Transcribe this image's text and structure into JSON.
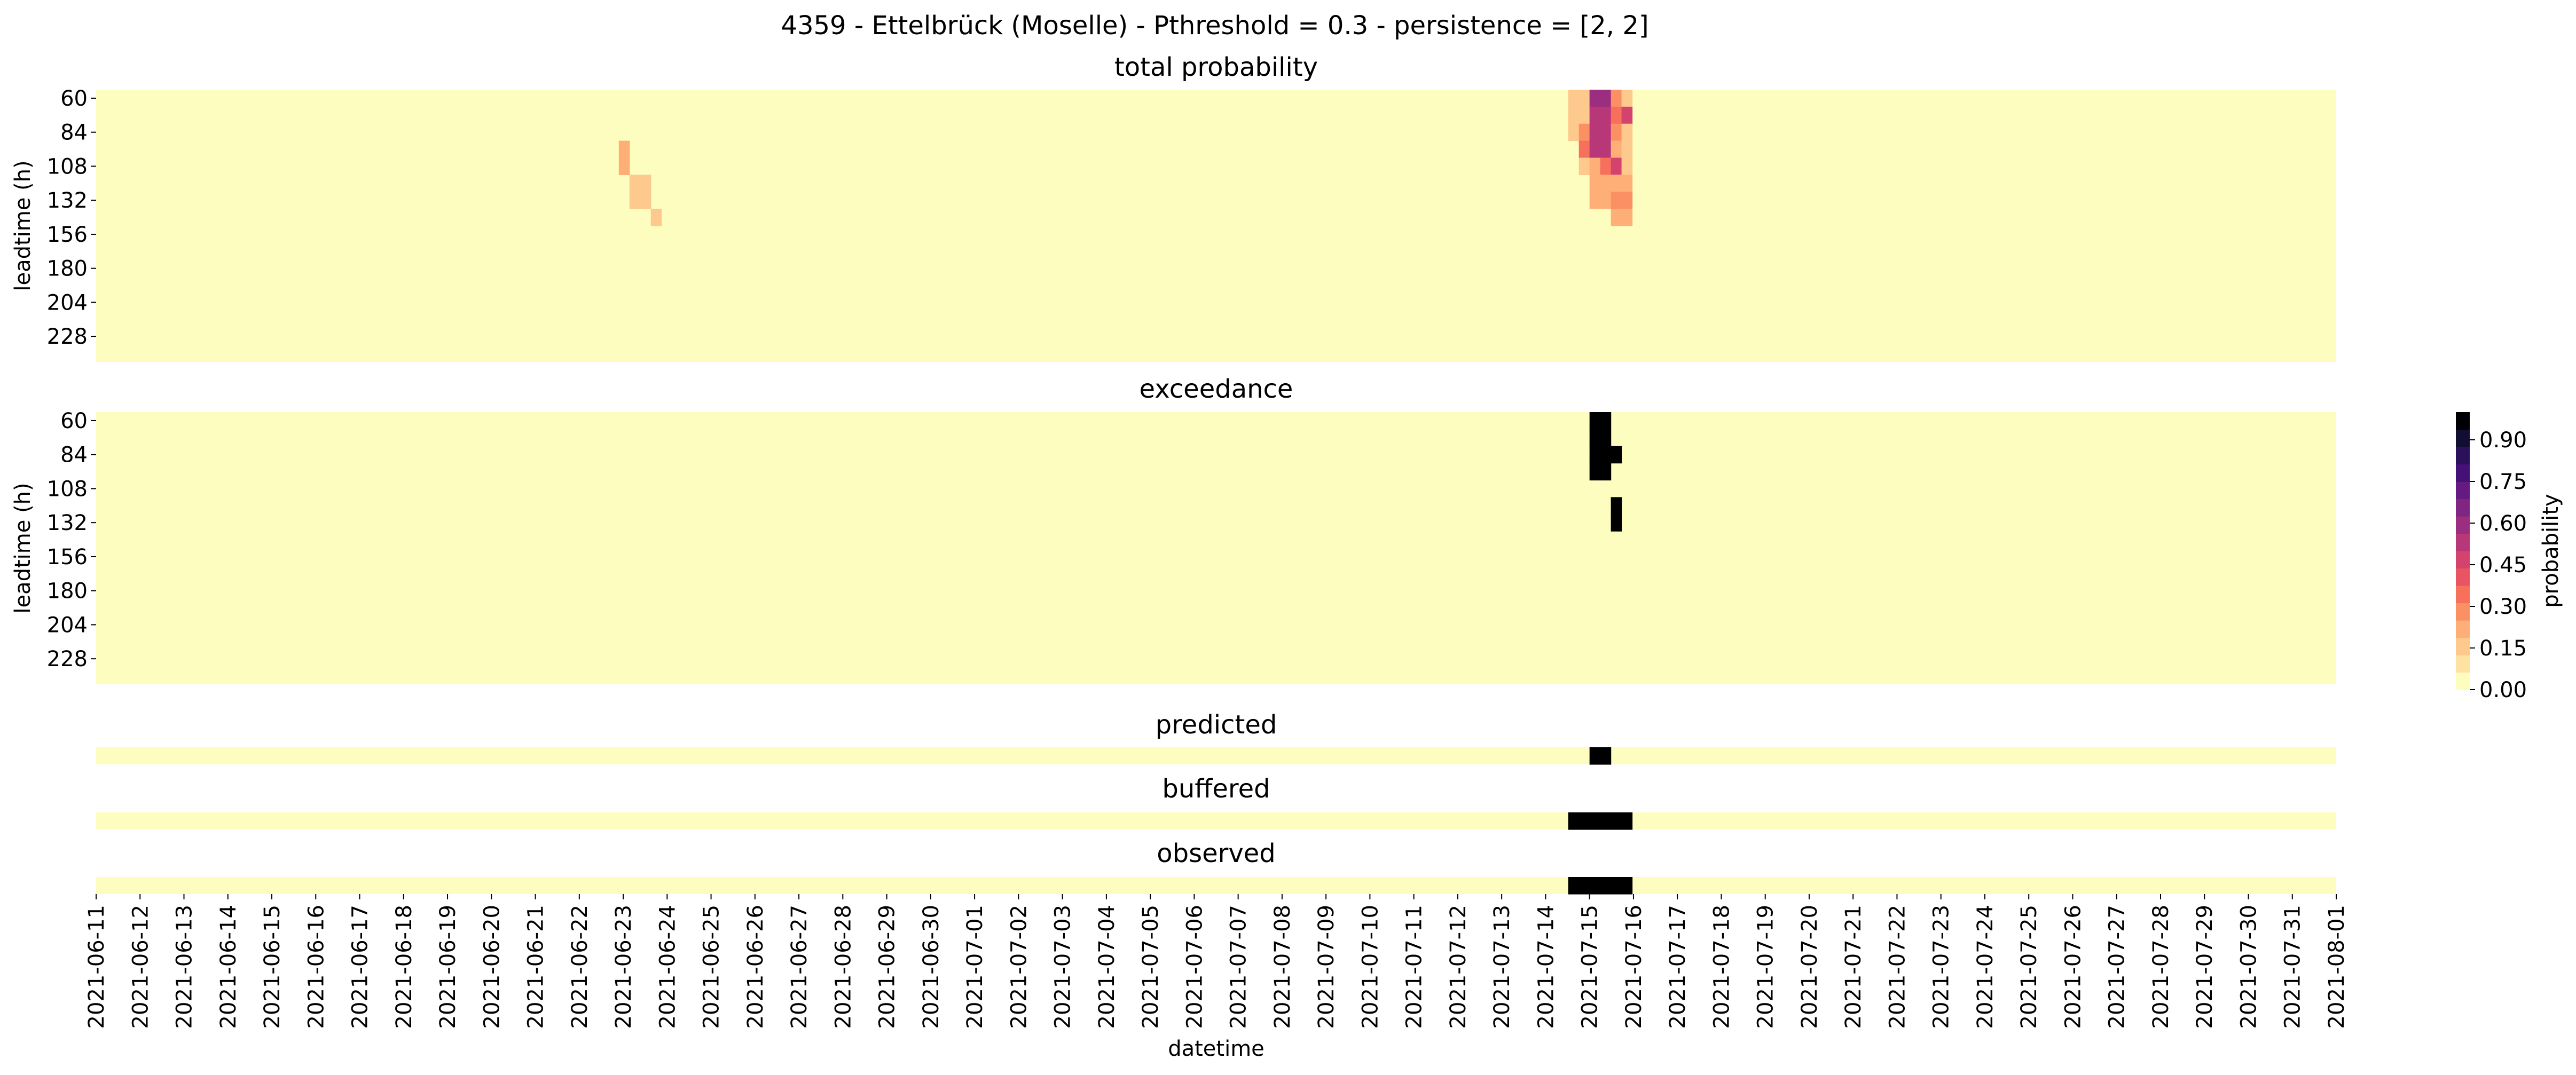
{
  "figure_title": "4359 - Ettelbrück (Moselle) - Pthreshold = 0.3 - persistence = [2, 2]",
  "colors": {
    "background_cell": "#fcfdbf",
    "black": "#000000",
    "colorbar_stops": [
      "#fcfdbf",
      "#fde2a1",
      "#fec98d",
      "#feaf77",
      "#fc9065",
      "#f7705c",
      "#e95462",
      "#d3436e",
      "#b73779",
      "#9c2e7f",
      "#802582",
      "#641a80",
      "#451077",
      "#2a115a",
      "#120d32",
      "#000004"
    ]
  },
  "chart_data": [
    {
      "type": "heatmap",
      "title": "total probability",
      "ylabel": "leadtime (h)",
      "yticks": [
        "60",
        "84",
        "108",
        "132",
        "156",
        "180",
        "204",
        "228"
      ],
      "rows": 16,
      "cols": 210,
      "date_labels": [
        "2021-06-11",
        "2021-06-12",
        "2021-06-13",
        "2021-06-14",
        "2021-06-15",
        "2021-06-16",
        "2021-06-17",
        "2021-06-18",
        "2021-06-19",
        "2021-06-20",
        "2021-06-21",
        "2021-06-22",
        "2021-06-23",
        "2021-06-24",
        "2021-06-25",
        "2021-06-26",
        "2021-06-27",
        "2021-06-28",
        "2021-06-29",
        "2021-06-30",
        "2021-07-01",
        "2021-07-02",
        "2021-07-03",
        "2021-07-04",
        "2021-07-05",
        "2021-07-06",
        "2021-07-07",
        "2021-07-08",
        "2021-07-09",
        "2021-07-10",
        "2021-07-11",
        "2021-07-12",
        "2021-07-13",
        "2021-07-14",
        "2021-07-15",
        "2021-07-16",
        "2021-07-17",
        "2021-07-18",
        "2021-07-19",
        "2021-07-20",
        "2021-07-21",
        "2021-07-22",
        "2021-07-23",
        "2021-07-24",
        "2021-07-25",
        "2021-07-26",
        "2021-07-27",
        "2021-07-28",
        "2021-07-29",
        "2021-07-30",
        "2021-07-31",
        "2021-08-01"
      ],
      "nonzero_cells": [
        {
          "row": 0,
          "col": 138,
          "value": 0.1
        },
        {
          "row": 0,
          "col": 139,
          "value": 0.15
        },
        {
          "row": 0,
          "col": 140,
          "value": 0.6
        },
        {
          "row": 0,
          "col": 141,
          "value": 0.6
        },
        {
          "row": 0,
          "col": 142,
          "value": 0.25
        },
        {
          "row": 0,
          "col": 143,
          "value": 0.1
        },
        {
          "row": 1,
          "col": 138,
          "value": 0.1
        },
        {
          "row": 1,
          "col": 139,
          "value": 0.15
        },
        {
          "row": 1,
          "col": 140,
          "value": 0.55
        },
        {
          "row": 1,
          "col": 141,
          "value": 0.55
        },
        {
          "row": 1,
          "col": 142,
          "value": 0.3
        },
        {
          "row": 1,
          "col": 143,
          "value": 0.45
        },
        {
          "row": 2,
          "col": 138,
          "value": 0.1
        },
        {
          "row": 2,
          "col": 139,
          "value": 0.25
        },
        {
          "row": 2,
          "col": 140,
          "value": 0.5
        },
        {
          "row": 2,
          "col": 141,
          "value": 0.55
        },
        {
          "row": 2,
          "col": 142,
          "value": 0.25
        },
        {
          "row": 2,
          "col": 143,
          "value": 0.1
        },
        {
          "row": 3,
          "col": 139,
          "value": 0.35
        },
        {
          "row": 3,
          "col": 140,
          "value": 0.5
        },
        {
          "row": 3,
          "col": 141,
          "value": 0.55
        },
        {
          "row": 3,
          "col": 142,
          "value": 0.2
        },
        {
          "row": 3,
          "col": 143,
          "value": 0.1
        },
        {
          "row": 3,
          "col": 49,
          "value": 0.2
        },
        {
          "row": 4,
          "col": 139,
          "value": 0.1
        },
        {
          "row": 4,
          "col": 140,
          "value": 0.2
        },
        {
          "row": 4,
          "col": 141,
          "value": 0.3
        },
        {
          "row": 4,
          "col": 142,
          "value": 0.45
        },
        {
          "row": 4,
          "col": 143,
          "value": 0.15
        },
        {
          "row": 4,
          "col": 49,
          "value": 0.2
        },
        {
          "row": 5,
          "col": 140,
          "value": 0.2
        },
        {
          "row": 5,
          "col": 141,
          "value": 0.2
        },
        {
          "row": 5,
          "col": 142,
          "value": 0.2
        },
        {
          "row": 5,
          "col": 143,
          "value": 0.2
        },
        {
          "row": 5,
          "col": 50,
          "value": 0.1
        },
        {
          "row": 5,
          "col": 51,
          "value": 0.1
        },
        {
          "row": 6,
          "col": 140,
          "value": 0.2
        },
        {
          "row": 6,
          "col": 141,
          "value": 0.2
        },
        {
          "row": 6,
          "col": 142,
          "value": 0.25
        },
        {
          "row": 6,
          "col": 143,
          "value": 0.25
        },
        {
          "row": 6,
          "col": 50,
          "value": 0.1
        },
        {
          "row": 6,
          "col": 51,
          "value": 0.1
        },
        {
          "row": 7,
          "col": 142,
          "value": 0.2
        },
        {
          "row": 7,
          "col": 143,
          "value": 0.2
        },
        {
          "row": 7,
          "col": 52,
          "value": 0.15
        }
      ]
    },
    {
      "type": "heatmap",
      "title": "exceedance",
      "ylabel": "leadtime (h)",
      "yticks": [
        "60",
        "84",
        "108",
        "132",
        "156",
        "180",
        "204",
        "228"
      ],
      "rows": 16,
      "cols": 210,
      "nonzero_cells": [
        {
          "row": 0,
          "col": 140,
          "value": 1
        },
        {
          "row": 0,
          "col": 141,
          "value": 1
        },
        {
          "row": 1,
          "col": 140,
          "value": 1
        },
        {
          "row": 1,
          "col": 141,
          "value": 1
        },
        {
          "row": 2,
          "col": 140,
          "value": 1
        },
        {
          "row": 2,
          "col": 141,
          "value": 1
        },
        {
          "row": 2,
          "col": 142,
          "value": 1
        },
        {
          "row": 3,
          "col": 140,
          "value": 1
        },
        {
          "row": 3,
          "col": 141,
          "value": 1
        },
        {
          "row": 5,
          "col": 142,
          "value": 1
        },
        {
          "row": 6,
          "col": 142,
          "value": 1
        }
      ]
    },
    {
      "type": "heatmap",
      "title": "predicted",
      "rows": 1,
      "cols": 210,
      "nonzero_cells": [
        {
          "row": 0,
          "col": 140,
          "value": 1
        },
        {
          "row": 0,
          "col": 141,
          "value": 1
        }
      ]
    },
    {
      "type": "heatmap",
      "title": "buffered",
      "rows": 1,
      "cols": 210,
      "nonzero_cells": [
        {
          "row": 0,
          "col": 138,
          "value": 1
        },
        {
          "row": 0,
          "col": 139,
          "value": 1
        },
        {
          "row": 0,
          "col": 140,
          "value": 1
        },
        {
          "row": 0,
          "col": 141,
          "value": 1
        },
        {
          "row": 0,
          "col": 142,
          "value": 1
        },
        {
          "row": 0,
          "col": 143,
          "value": 1
        }
      ]
    },
    {
      "type": "heatmap",
      "title": "observed",
      "xlabel": "datetime",
      "rows": 1,
      "cols": 210,
      "nonzero_cells": [
        {
          "row": 0,
          "col": 138,
          "value": 1
        },
        {
          "row": 0,
          "col": 139,
          "value": 1
        },
        {
          "row": 0,
          "col": 140,
          "value": 1
        },
        {
          "row": 0,
          "col": 141,
          "value": 1
        },
        {
          "row": 0,
          "col": 142,
          "value": 1
        },
        {
          "row": 0,
          "col": 143,
          "value": 1
        }
      ]
    }
  ],
  "colorbar": {
    "label": "probability",
    "ticks": [
      "0.00",
      "0.15",
      "0.30",
      "0.45",
      "0.60",
      "0.75",
      "0.90"
    ],
    "range": [
      0,
      1
    ]
  }
}
